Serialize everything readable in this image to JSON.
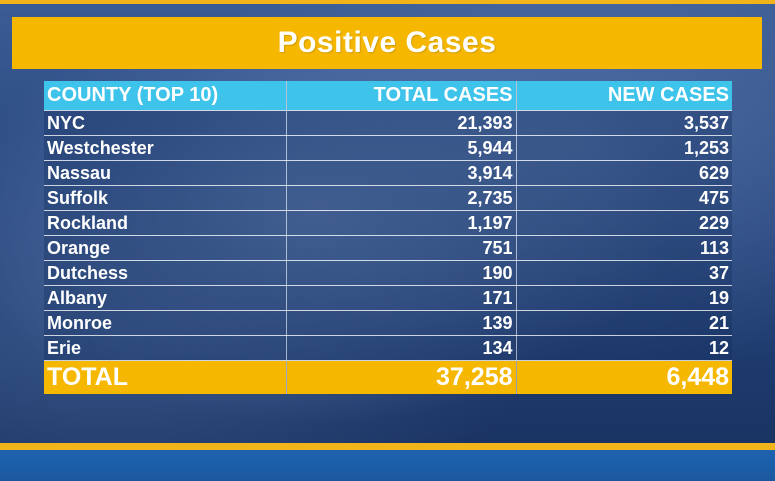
{
  "title": "Positive Cases",
  "colors": {
    "banner": "#f5b700",
    "header": "#3ec3ea",
    "background": "#1b3b6e"
  },
  "table": {
    "headers": [
      "COUNTY (TOP 10)",
      "TOTAL CASES",
      "NEW CASES"
    ],
    "rows": [
      {
        "county": "NYC",
        "total": "21,393",
        "new": "3,537"
      },
      {
        "county": "Westchester",
        "total": "5,944",
        "new": "1,253"
      },
      {
        "county": "Nassau",
        "total": "3,914",
        "new": "629"
      },
      {
        "county": "Suffolk",
        "total": "2,735",
        "new": "475"
      },
      {
        "county": "Rockland",
        "total": "1,197",
        "new": "229"
      },
      {
        "county": "Orange",
        "total": "751",
        "new": "113"
      },
      {
        "county": "Dutchess",
        "total": "190",
        "new": "37"
      },
      {
        "county": "Albany",
        "total": "171",
        "new": "19"
      },
      {
        "county": "Monroe",
        "total": "139",
        "new": "21"
      },
      {
        "county": "Erie",
        "total": "134",
        "new": "12"
      }
    ],
    "total": {
      "label": "TOTAL",
      "total": "37,258",
      "new": "6,448"
    }
  }
}
